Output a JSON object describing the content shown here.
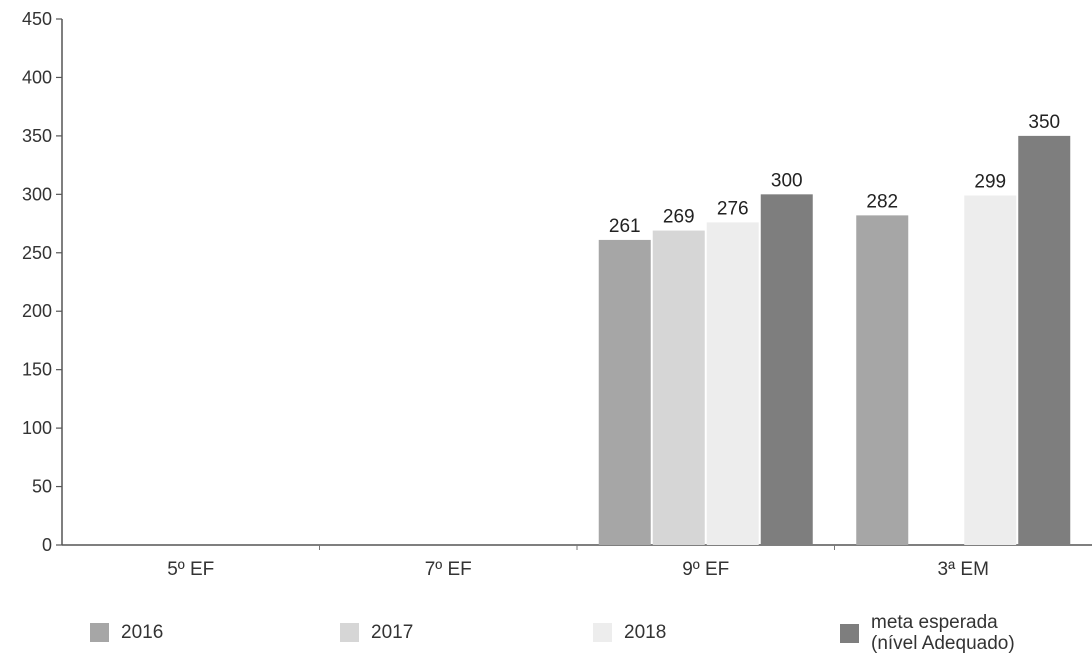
{
  "chart_data": {
    "type": "bar",
    "categories": [
      "5º EF",
      "7º EF",
      "9º EF",
      "3ª EM"
    ],
    "series": [
      {
        "name": "2016",
        "values": [
          null,
          null,
          261,
          282
        ],
        "color": "#a6a6a6"
      },
      {
        "name": "2017",
        "values": [
          null,
          null,
          269,
          null
        ],
        "color": "#d6d6d6"
      },
      {
        "name": "2018",
        "values": [
          null,
          null,
          276,
          299
        ],
        "color": "#ededed"
      },
      {
        "name": "meta esperada\n(nível Adequado)",
        "values": [
          null,
          null,
          300,
          350
        ],
        "color": "#7e7e7e"
      }
    ],
    "ylim": [
      0,
      450
    ],
    "yticks": [
      0,
      50,
      100,
      150,
      200,
      250,
      300,
      350,
      400,
      450
    ],
    "grid": false,
    "legend_position": "bottom"
  }
}
